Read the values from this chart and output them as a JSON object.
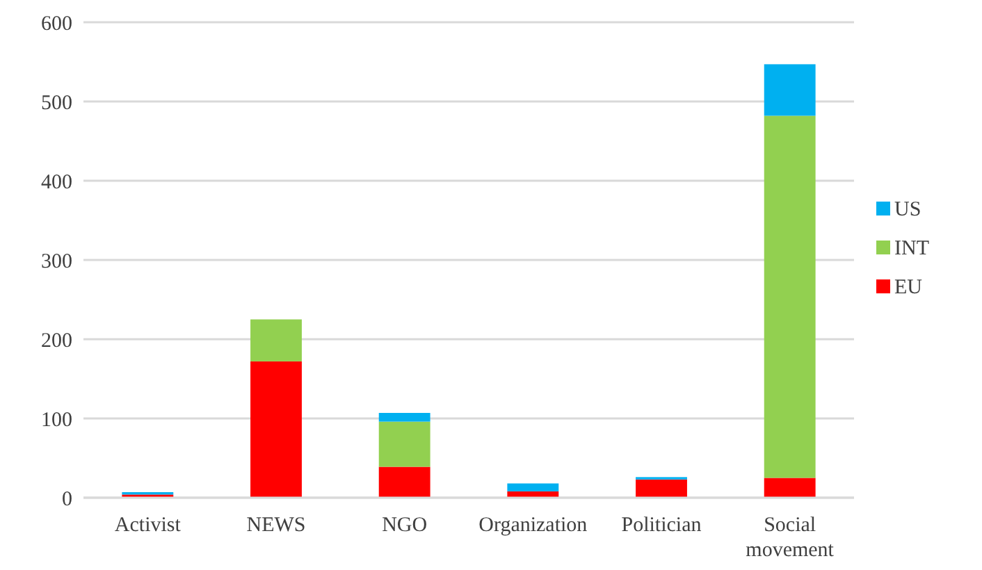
{
  "chart_data": {
    "type": "bar",
    "stacked": true,
    "categories": [
      "Activist",
      "NEWS",
      "NGO",
      "Organization",
      "Politician",
      "Social movement"
    ],
    "series": [
      {
        "name": "EU",
        "color": "#ff0000",
        "values": [
          4,
          172,
          39,
          8,
          23,
          25
        ]
      },
      {
        "name": "INT",
        "color": "#92d050",
        "values": [
          0,
          53,
          57,
          0,
          0,
          457
        ]
      },
      {
        "name": "US",
        "color": "#00b0f0",
        "values": [
          3,
          0,
          11,
          10,
          3,
          65
        ]
      }
    ],
    "ylim": [
      0,
      600
    ],
    "yticks": [
      0,
      100,
      200,
      300,
      400,
      500,
      600
    ],
    "grid": "y",
    "legend": "right"
  }
}
